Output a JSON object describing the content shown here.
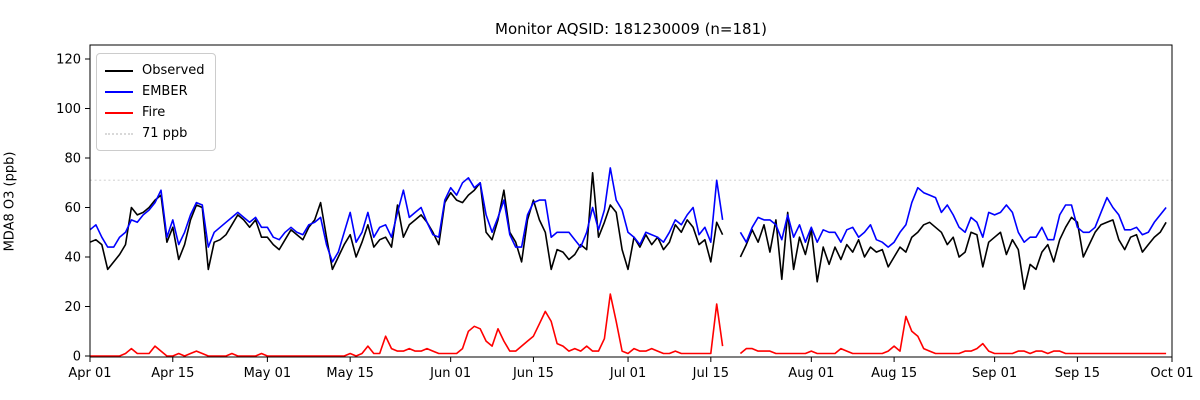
{
  "title": "Monitor AQSID: 181230009 (n=181)",
  "chart_data": {
    "type": "line",
    "title": "Monitor AQSID: 181230009 (n=181)",
    "xlabel": "",
    "ylabel": "MDA8 O3 (ppb)",
    "ylim": [
      0,
      126
    ],
    "grid": false,
    "legend_position": "upper left",
    "days_total": 183,
    "x_start_date": "Apr 01",
    "x_end_date": "Oct 01",
    "missing_days": [
      "Jul 18",
      "Jul 19"
    ],
    "n_points": 181,
    "y_ticks": [
      0,
      20,
      40,
      60,
      80,
      100,
      120
    ],
    "x_ticks": [
      {
        "label": "Apr 01",
        "day": 0
      },
      {
        "label": "Apr 15",
        "day": 14
      },
      {
        "label": "May 01",
        "day": 30
      },
      {
        "label": "May 15",
        "day": 44
      },
      {
        "label": "Jun 01",
        "day": 61
      },
      {
        "label": "Jun 15",
        "day": 75
      },
      {
        "label": "Jul 01",
        "day": 91
      },
      {
        "label": "Jul 15",
        "day": 105
      },
      {
        "label": "Aug 01",
        "day": 122
      },
      {
        "label": "Aug 15",
        "day": 136
      },
      {
        "label": "Sep 01",
        "day": 153
      },
      {
        "label": "Sep 15",
        "day": 167
      },
      {
        "label": "Oct 01",
        "day": 183
      }
    ],
    "threshold": {
      "value": 71,
      "label": "71 ppb",
      "color": "#d9d9d9",
      "style": "dotted"
    },
    "legend": [
      {
        "label": "Observed",
        "color": "#000000",
        "style": "solid"
      },
      {
        "label": "EMBER",
        "color": "#0000ff",
        "style": "solid"
      },
      {
        "label": "Fire",
        "color": "#ff0000",
        "style": "solid"
      },
      {
        "label": "71 ppb",
        "color": "#d9d9d9",
        "style": "dotted"
      }
    ],
    "series": [
      {
        "name": "Observed",
        "color": "#000000",
        "values": [
          46,
          47,
          45,
          35,
          38,
          41,
          45,
          60,
          57,
          58,
          60,
          63,
          65,
          46,
          52,
          39,
          45,
          55,
          61,
          60,
          35,
          46,
          47,
          49,
          53,
          57,
          55,
          52,
          55,
          48,
          48,
          45,
          43,
          47,
          51,
          49,
          47,
          52,
          55,
          62,
          48,
          35,
          40,
          45,
          49,
          40,
          46,
          53,
          44,
          47,
          48,
          44,
          61,
          48,
          53,
          55,
          57,
          54,
          50,
          45,
          62,
          66,
          63,
          62,
          65,
          67,
          70,
          50,
          47,
          55,
          67,
          50,
          46,
          38,
          55,
          63,
          55,
          50,
          35,
          43,
          42,
          39,
          41,
          45,
          43,
          74,
          48,
          54,
          61,
          58,
          43,
          35,
          48,
          44,
          49,
          45,
          48,
          43,
          46,
          53,
          50,
          55,
          52,
          45,
          47,
          38,
          54,
          49,
          null,
          null,
          40,
          45,
          51,
          46,
          53,
          42,
          55,
          31,
          58,
          35,
          48,
          41,
          51,
          30,
          44,
          37,
          44,
          39,
          45,
          42,
          47,
          40,
          44,
          42,
          43,
          36,
          40,
          44,
          42,
          48,
          50,
          53,
          54,
          52,
          50,
          45,
          48,
          40,
          42,
          50,
          49,
          36,
          46,
          48,
          50,
          41,
          47,
          43,
          27,
          37,
          35,
          42,
          45,
          38,
          47,
          52,
          56,
          54,
          40,
          45,
          50,
          53,
          54,
          55,
          47,
          43,
          48,
          49,
          42,
          45,
          48,
          50,
          54
        ]
      },
      {
        "name": "EMBER",
        "color": "#0000ff",
        "values": [
          51,
          53,
          48,
          44,
          44,
          48,
          50,
          55,
          54,
          57,
          59,
          62,
          67,
          48,
          55,
          45,
          50,
          57,
          62,
          61,
          44,
          50,
          52,
          54,
          56,
          58,
          56,
          54,
          56,
          52,
          52,
          48,
          47,
          50,
          52,
          50,
          49,
          53,
          54,
          56,
          45,
          38,
          42,
          50,
          58,
          46,
          50,
          58,
          48,
          52,
          53,
          48,
          58,
          67,
          56,
          58,
          60,
          54,
          49,
          48,
          63,
          68,
          65,
          70,
          72,
          68,
          70,
          57,
          50,
          56,
          63,
          49,
          44,
          44,
          57,
          62,
          63,
          63,
          48,
          50,
          50,
          50,
          47,
          44,
          50,
          60,
          51,
          59,
          76,
          63,
          59,
          50,
          48,
          45,
          50,
          49,
          48,
          46,
          50,
          55,
          53,
          57,
          60,
          49,
          52,
          46,
          71,
          55,
          null,
          null,
          50,
          46,
          52,
          56,
          55,
          55,
          53,
          47,
          57,
          48,
          53,
          46,
          52,
          46,
          51,
          50,
          50,
          46,
          51,
          52,
          48,
          50,
          53,
          47,
          46,
          44,
          46,
          50,
          53,
          62,
          68,
          66,
          65,
          64,
          58,
          61,
          57,
          52,
          50,
          56,
          54,
          48,
          58,
          57,
          58,
          61,
          58,
          50,
          46,
          48,
          48,
          52,
          47,
          47,
          57,
          61,
          61,
          52,
          50,
          50,
          52,
          58,
          64,
          60,
          57,
          51,
          51,
          52,
          49,
          50,
          54,
          57,
          60
        ]
      },
      {
        "name": "Fire",
        "color": "#ff0000",
        "values": [
          0,
          0,
          0,
          0,
          0,
          0,
          1,
          3,
          1,
          1,
          1,
          4,
          2,
          0,
          0,
          1,
          0,
          1,
          2,
          1,
          0,
          0,
          0,
          0,
          1,
          0,
          0,
          0,
          0,
          1,
          0,
          0,
          0,
          0,
          0,
          0,
          0,
          0,
          0,
          0,
          0,
          0,
          0,
          0,
          1,
          0,
          1,
          4,
          1,
          1,
          8,
          3,
          2,
          2,
          3,
          2,
          2,
          3,
          2,
          1,
          1,
          1,
          1,
          3,
          10,
          12,
          11,
          6,
          4,
          11,
          6,
          2,
          2,
          4,
          6,
          8,
          13,
          18,
          14,
          5,
          4,
          2,
          3,
          2,
          4,
          2,
          2,
          7,
          25,
          14,
          2,
          1,
          3,
          2,
          2,
          3,
          2,
          1,
          1,
          2,
          1,
          1,
          1,
          1,
          1,
          1,
          21,
          4,
          null,
          null,
          1,
          3,
          3,
          2,
          2,
          2,
          1,
          1,
          1,
          1,
          1,
          1,
          2,
          1,
          1,
          1,
          1,
          3,
          2,
          1,
          1,
          1,
          1,
          1,
          1,
          2,
          4,
          2,
          16,
          10,
          8,
          3,
          2,
          1,
          1,
          1,
          1,
          1,
          2,
          2,
          3,
          5,
          2,
          1,
          1,
          1,
          1,
          2,
          2,
          1,
          2,
          2,
          1,
          2,
          2,
          1,
          1,
          1,
          1,
          1,
          1,
          1,
          1,
          1,
          1,
          1,
          1,
          1,
          1,
          1,
          1,
          1,
          1
        ]
      }
    ]
  },
  "colors": {
    "background": "#ffffff",
    "frame": "#000000",
    "observed": "#000000",
    "ember": "#0000ff",
    "fire": "#ff0000",
    "threshold": "#d9d9d9",
    "legend_border": "#cccccc"
  }
}
